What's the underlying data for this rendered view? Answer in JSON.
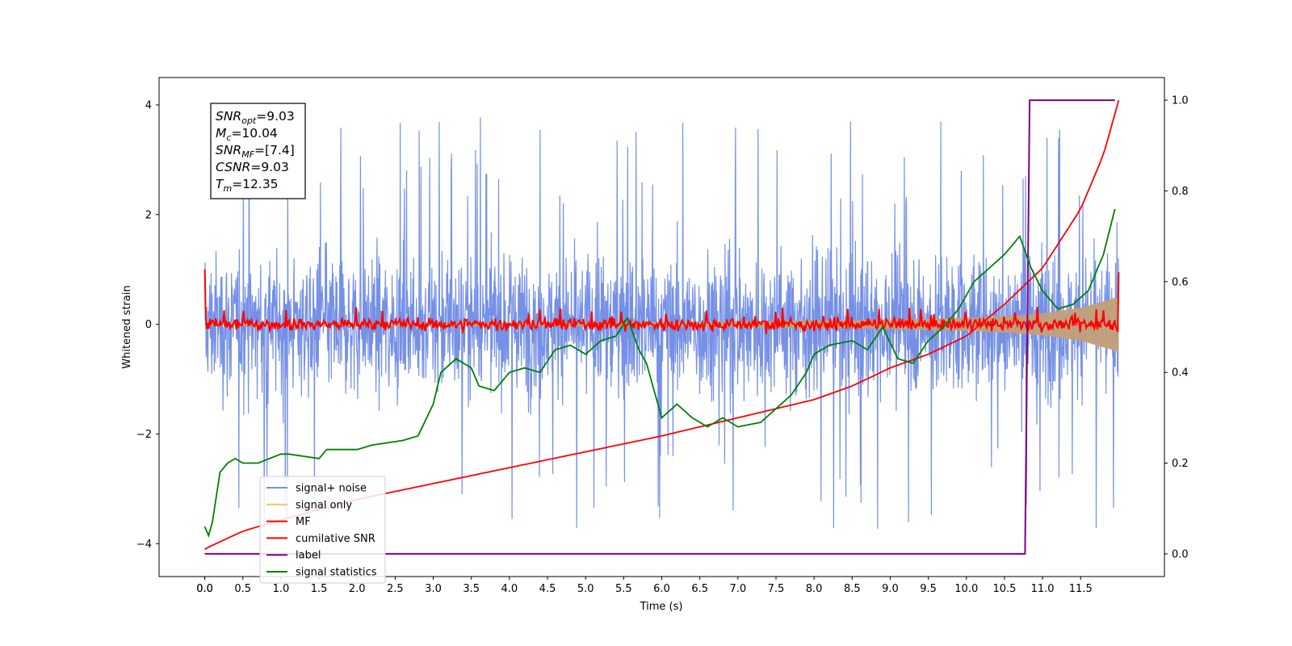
{
  "chart_data": {
    "type": "line",
    "xlabel": "Time (s)",
    "ylabel": "Whitened strain",
    "xlim": [
      -0.6,
      12.6
    ],
    "ylim_left": [
      -4.6,
      4.5
    ],
    "ylim_right": [
      -0.05,
      1.05
    ],
    "x_ticks": [
      "0.0",
      "0.0",
      "0.5",
      "1.0",
      "1.5",
      "2.0",
      "2.5",
      "3.0",
      "3.5",
      "4.0",
      "4.5",
      "5.0",
      "5.5",
      "6.0",
      "6.5",
      "7.0",
      "7.5",
      "8.0",
      "8.5",
      "9.0",
      "9.5",
      "10.0",
      "10.5",
      "11.0",
      "11.5"
    ],
    "x_tick_values": [
      0,
      0.0,
      0.5,
      1.0,
      1.5,
      2.0,
      2.5,
      3.0,
      3.5,
      4.0,
      4.5,
      5.0,
      5.5,
      6.0,
      6.5,
      7.0,
      7.5,
      8.0,
      8.5,
      9.0,
      9.5,
      10.0,
      10.5,
      11.0,
      11.5
    ],
    "y_ticks_left": [
      "4",
      "2",
      "0",
      "−2",
      "−4"
    ],
    "y_tick_values_left": [
      4,
      2,
      0,
      -2,
      -4
    ],
    "y_ticks_right": [
      "1.0",
      "0.8",
      "0.6",
      "0.4",
      "0.2",
      "0.0"
    ],
    "y_tick_values_right": [
      1.0,
      0.8,
      0.6,
      0.4,
      0.2,
      0.0
    ],
    "grid": false,
    "legend_placement": "lower-left",
    "annotation": {
      "lines": [
        {
          "sym": "SNR",
          "sub": "opt",
          "val": "=9.03"
        },
        {
          "sym": "M",
          "sub": "c",
          "val": "=10.04"
        },
        {
          "sym": "SNR",
          "sub": "MF",
          "val": "=[7.4]"
        },
        {
          "sym": "CSNR",
          "sub": "",
          "val": "=9.03"
        },
        {
          "sym": "T",
          "sub": "m",
          "val": "=12.35"
        }
      ]
    },
    "series": [
      {
        "name": "signal+ noise",
        "color": "#7590e6",
        "axis": "left",
        "style": "noise",
        "x_range": [
          0,
          12.0
        ],
        "amplitude_band": [
          -1.6,
          1.6
        ],
        "spike_max": 4.0
      },
      {
        "name": "signal only",
        "color": "#f2c36b",
        "axis": "left",
        "style": "chirp-envelope",
        "x_range": [
          0,
          12.0
        ],
        "envelope": {
          "x": [
            0,
            6.0,
            8.0,
            9.0,
            10.0,
            10.5,
            11.0,
            11.5,
            12.0
          ],
          "y": [
            0.02,
            0.04,
            0.07,
            0.09,
            0.12,
            0.15,
            0.2,
            0.3,
            0.5
          ]
        }
      },
      {
        "name": "MF",
        "color": "#ff0000",
        "axis": "left",
        "style": "jitter",
        "x_range": [
          0,
          12.0
        ],
        "jitter": 0.18,
        "start": 1.0,
        "end": 0.95
      },
      {
        "name": "cumilative SNR",
        "color": "#ff0000",
        "axis": "right",
        "x": [
          0,
          0.05,
          0.5,
          1.0,
          2.0,
          3.0,
          4.0,
          5.0,
          6.0,
          7.0,
          7.5,
          8.0,
          8.5,
          9.0,
          9.5,
          10.0,
          10.5,
          11.0,
          11.5,
          11.8,
          12.0
        ],
        "y": [
          0.01,
          0.015,
          0.05,
          0.075,
          0.12,
          0.155,
          0.19,
          0.225,
          0.26,
          0.3,
          0.32,
          0.34,
          0.37,
          0.41,
          0.44,
          0.48,
          0.55,
          0.63,
          0.76,
          0.88,
          1.0
        ]
      },
      {
        "name": "label",
        "color": "#800080",
        "axis": "right",
        "x": [
          0,
          10.77,
          10.83,
          11.95
        ],
        "y": [
          0.0,
          0.0,
          1.0,
          1.0
        ]
      },
      {
        "name": "signal statistics",
        "color": "#008000",
        "axis": "right",
        "x": [
          0,
          0.05,
          0.1,
          0.2,
          0.3,
          0.4,
          0.5,
          0.7,
          1.0,
          1.1,
          1.5,
          1.6,
          2.0,
          2.2,
          2.6,
          2.8,
          3.0,
          3.1,
          3.3,
          3.5,
          3.6,
          3.8,
          4.0,
          4.2,
          4.4,
          4.6,
          4.8,
          5.0,
          5.2,
          5.4,
          5.55,
          5.7,
          5.8,
          6.0,
          6.2,
          6.4,
          6.6,
          6.8,
          7.0,
          7.3,
          7.5,
          7.7,
          7.9,
          8.0,
          8.2,
          8.5,
          8.7,
          8.9,
          9.1,
          9.3,
          9.5,
          9.7,
          9.9,
          10.1,
          10.3,
          10.5,
          10.6,
          10.7,
          10.85,
          11.0,
          11.2,
          11.4,
          11.6,
          11.8,
          11.95
        ],
        "y": [
          0.06,
          0.04,
          0.07,
          0.18,
          0.2,
          0.21,
          0.2,
          0.2,
          0.22,
          0.22,
          0.21,
          0.23,
          0.23,
          0.24,
          0.25,
          0.26,
          0.33,
          0.4,
          0.43,
          0.41,
          0.37,
          0.36,
          0.4,
          0.41,
          0.4,
          0.45,
          0.46,
          0.44,
          0.47,
          0.48,
          0.52,
          0.45,
          0.42,
          0.3,
          0.33,
          0.3,
          0.28,
          0.3,
          0.28,
          0.29,
          0.32,
          0.35,
          0.4,
          0.44,
          0.46,
          0.47,
          0.45,
          0.5,
          0.43,
          0.42,
          0.47,
          0.5,
          0.54,
          0.6,
          0.63,
          0.66,
          0.68,
          0.7,
          0.63,
          0.58,
          0.54,
          0.55,
          0.58,
          0.66,
          0.76
        ]
      }
    ]
  }
}
